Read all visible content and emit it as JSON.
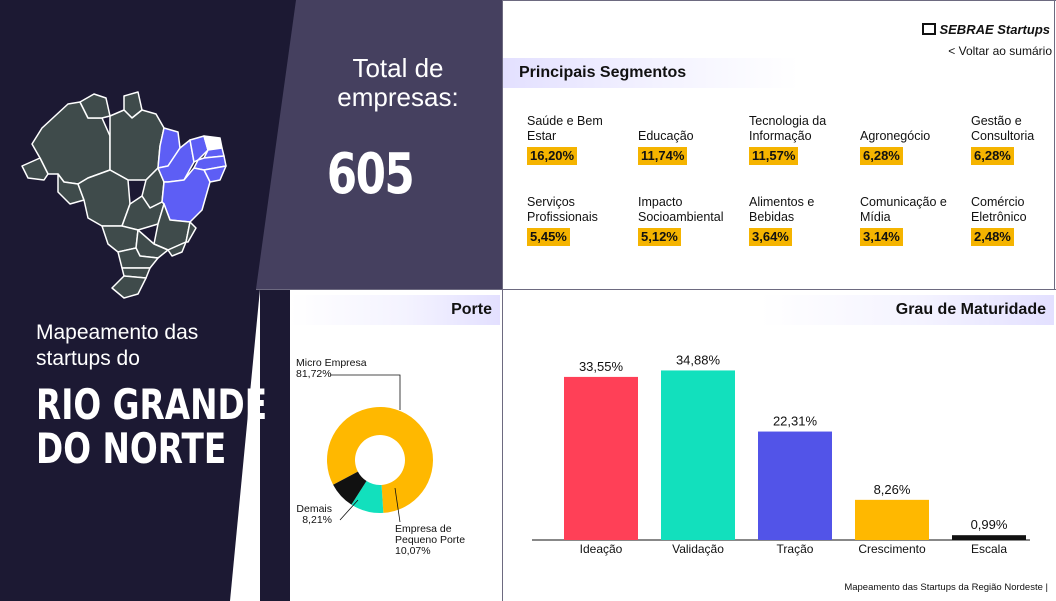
{
  "total": {
    "label_line1": "Total de",
    "label_line2": "empresas:",
    "value": "605"
  },
  "title": {
    "line1": "Mapeamento das",
    "line2": "startups do",
    "big_line1": "RIO GRANDE",
    "big_line2": "DO NORTE"
  },
  "header": {
    "brand": "SEBRAE Startups",
    "back_link": "< Voltar ao sumário"
  },
  "segments": {
    "title": "Principais Segmentos",
    "items": [
      {
        "label_lines": [
          "Saúde e Bem",
          "Estar"
        ],
        "value": "16,20%"
      },
      {
        "label_lines": [
          "",
          "Educação"
        ],
        "value": "11,74%"
      },
      {
        "label_lines": [
          "Tecnologia da",
          "Informação"
        ],
        "value": "11,57%"
      },
      {
        "label_lines": [
          "",
          "Agronegócio"
        ],
        "value": "6,28%"
      },
      {
        "label_lines": [
          "Gestão e",
          "Consultoria"
        ],
        "value": "6,28%"
      },
      {
        "label_lines": [
          "Serviços",
          "Profissionais"
        ],
        "value": "5,45%"
      },
      {
        "label_lines": [
          "Impacto",
          "Socioambiental"
        ],
        "value": "5,12%"
      },
      {
        "label_lines": [
          "Alimentos e",
          "Bebidas"
        ],
        "value": "3,64%"
      },
      {
        "label_lines": [
          "Comunicação e",
          "Mídia"
        ],
        "value": "3,14%"
      },
      {
        "label_lines": [
          "Comércio",
          "Eletrônico"
        ],
        "value": "2,48%"
      }
    ]
  },
  "porte": {
    "title": "Porte",
    "label_micro": [
      "Micro Empresa",
      "81,72%"
    ],
    "label_pequeno": [
      "Empresa de",
      "Pequeno Porte",
      "10,07%"
    ],
    "label_demais": [
      "Demais",
      "8,21%"
    ]
  },
  "maturidade": {
    "title": "Grau de Maturidade"
  },
  "footer": {
    "text": "Mapeamento das Startups da Região Nordeste |"
  },
  "colors": {
    "dark_panel": "#1c1933",
    "total_panel": "#45405f",
    "accent_yellow": "#f5b400",
    "map_state": "#3f4b4b",
    "map_highlight": "#5d5ef5",
    "map_neighbor": "#ffffff"
  },
  "chart_data": [
    {
      "type": "bar",
      "categories": [
        "Ideação",
        "Validação",
        "Tração",
        "Crescimento",
        "Escala"
      ],
      "values": [
        33.55,
        34.88,
        22.31,
        8.26,
        0.99
      ],
      "value_labels": [
        "33,55%",
        "34,88%",
        "22,31%",
        "8,26%",
        "0,99%"
      ],
      "colors": [
        "#ff4057",
        "#12e0bd",
        "#5254e8",
        "#ffb800",
        "#111111"
      ],
      "title": "Grau de Maturidade",
      "ylim": [
        0,
        36
      ],
      "grid": false
    },
    {
      "type": "pie",
      "donut": true,
      "categories": [
        "Micro Empresa",
        "Empresa de Pequeno Porte",
        "Demais"
      ],
      "values": [
        81.72,
        10.07,
        8.21
      ],
      "colors": [
        "#ffb800",
        "#12e0bd",
        "#111111"
      ],
      "title": "Porte"
    }
  ]
}
